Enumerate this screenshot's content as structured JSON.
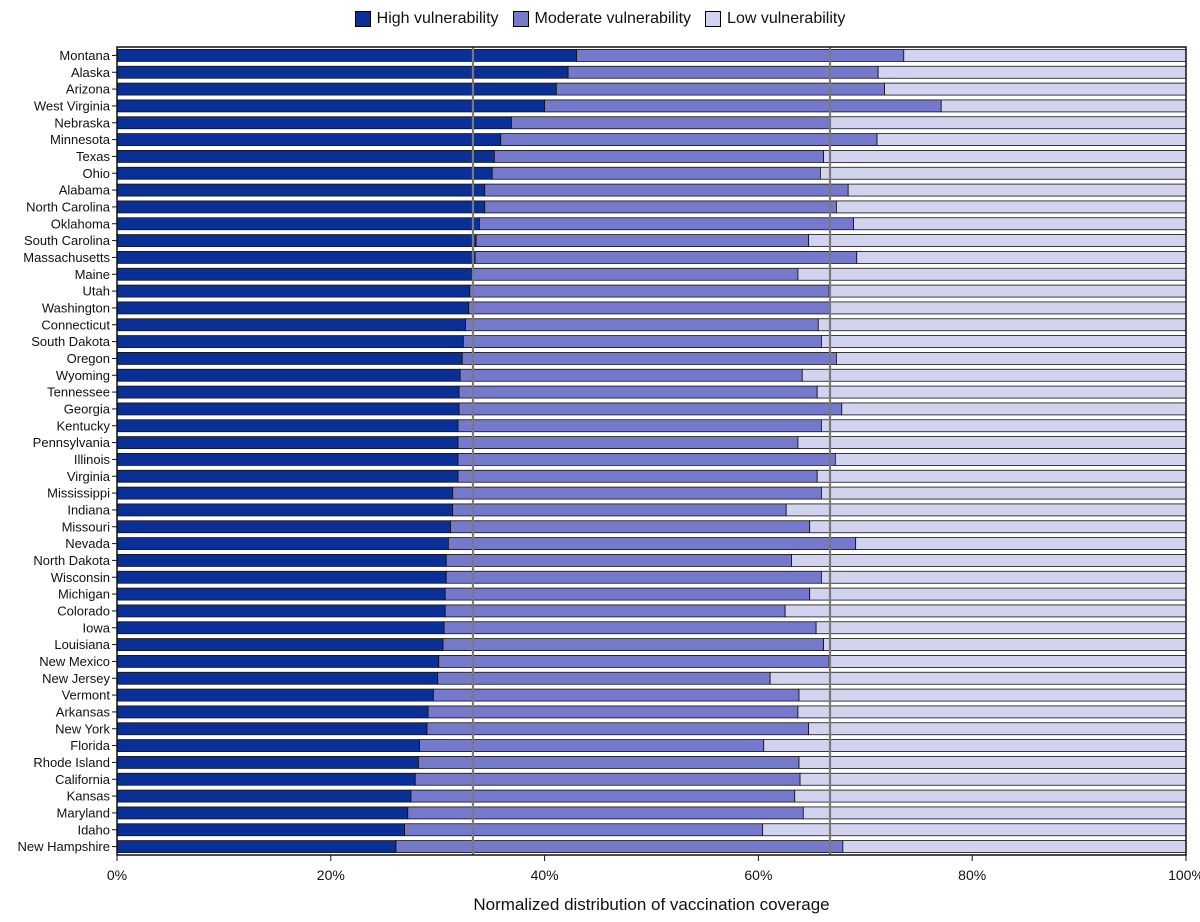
{
  "chart_data": {
    "type": "bar",
    "orientation": "horizontal",
    "stacked": true,
    "title": "",
    "xlabel": "Normalized distribution of vaccination coverage",
    "ylabel": "",
    "xlim": [
      0,
      100
    ],
    "x_ticks": [
      "0%",
      "20%",
      "40%",
      "60%",
      "80%",
      "100%"
    ],
    "x_tick_values": [
      0,
      20,
      40,
      60,
      80,
      100
    ],
    "reference_lines": [
      33.3,
      66.7
    ],
    "legend_position": "top-center",
    "categories": [
      "Montana",
      "Alaska",
      "Arizona",
      "West Virginia",
      "Nebraska",
      "Minnesota",
      "Texas",
      "Ohio",
      "Alabama",
      "North Carolina",
      "Oklahoma",
      "South Carolina",
      "Massachusetts",
      "Maine",
      "Utah",
      "Washington",
      "Connecticut",
      "South Dakota",
      "Oregon",
      "Wyoming",
      "Tennessee",
      "Georgia",
      "Kentucky",
      "Pennsylvania",
      "Illinois",
      "Virginia",
      "Mississippi",
      "Indiana",
      "Missouri",
      "Nevada",
      "North Dakota",
      "Wisconsin",
      "Michigan",
      "Colorado",
      "Iowa",
      "Louisiana",
      "New Mexico",
      "New Jersey",
      "Vermont",
      "Arkansas",
      "New York",
      "Florida",
      "Rhode Island",
      "California",
      "Kansas",
      "Maryland",
      "Idaho",
      "New Hampshire"
    ],
    "series": [
      {
        "name": "High vulnerability",
        "color": "#0a2f96",
        "values": [
          43.0,
          42.2,
          41.1,
          40.0,
          36.9,
          35.9,
          35.3,
          35.1,
          34.4,
          34.4,
          33.9,
          33.6,
          33.5,
          33.2,
          33.0,
          32.9,
          32.6,
          32.4,
          32.3,
          32.1,
          32.0,
          32.0,
          31.9,
          31.9,
          31.9,
          31.9,
          31.4,
          31.4,
          31.2,
          31.0,
          30.8,
          30.8,
          30.7,
          30.7,
          30.6,
          30.5,
          30.1,
          30.0,
          29.6,
          29.1,
          29.0,
          28.3,
          28.2,
          27.9,
          27.5,
          27.2,
          26.9,
          26.1
        ]
      },
      {
        "name": "Moderate vulnerability",
        "color": "#7579cb",
        "values": [
          30.6,
          29.0,
          30.7,
          37.1,
          29.8,
          35.2,
          30.8,
          30.7,
          34.0,
          32.9,
          35.0,
          31.1,
          35.7,
          30.5,
          33.6,
          33.8,
          33.0,
          33.5,
          35.0,
          32.0,
          33.5,
          35.8,
          34.0,
          31.8,
          35.3,
          33.6,
          34.5,
          31.2,
          33.6,
          38.1,
          32.3,
          35.1,
          34.1,
          31.8,
          34.8,
          35.6,
          36.5,
          31.1,
          34.2,
          34.6,
          35.7,
          32.2,
          35.6,
          36.0,
          35.9,
          37.0,
          33.5,
          41.8
        ]
      },
      {
        "name": "Low vulnerability",
        "color": "#d2d3ee",
        "values": [
          26.4,
          28.8,
          28.2,
          22.9,
          33.3,
          28.9,
          33.9,
          34.2,
          31.6,
          32.7,
          31.1,
          35.3,
          30.8,
          36.3,
          33.4,
          33.3,
          34.4,
          34.1,
          32.7,
          35.9,
          34.5,
          32.2,
          34.1,
          36.3,
          32.8,
          34.5,
          34.1,
          37.4,
          35.2,
          30.9,
          36.9,
          34.1,
          35.2,
          37.5,
          34.6,
          33.9,
          33.4,
          38.9,
          36.2,
          36.3,
          35.3,
          39.5,
          36.2,
          36.1,
          36.6,
          35.8,
          39.6,
          32.1
        ]
      }
    ]
  }
}
